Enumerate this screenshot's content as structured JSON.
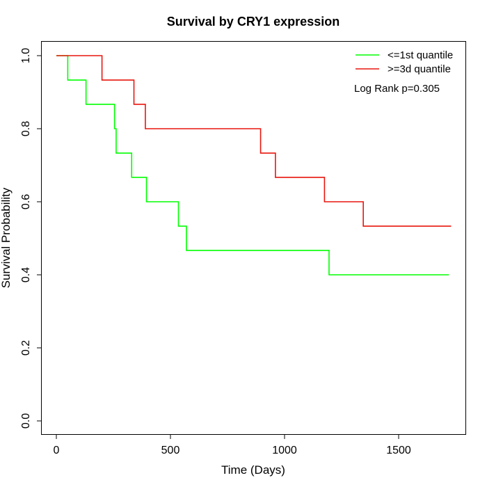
{
  "chart_data": {
    "type": "line",
    "title": "Survival by CRY1 expression",
    "xlabel": "Time (Days)",
    "ylabel": "Survival Probability",
    "xlim": [
      0,
      1750
    ],
    "ylim": [
      0,
      1.0
    ],
    "xticks": [
      0,
      500,
      1000,
      1500
    ],
    "yticks": [
      0.0,
      0.2,
      0.4,
      0.6,
      0.8,
      1.0
    ],
    "xtick_labels": [
      "0",
      "500",
      "1000",
      "1500"
    ],
    "ytick_labels": [
      "0.0",
      "0.2",
      "0.4",
      "0.6",
      "0.8",
      "1.0"
    ],
    "grid": false,
    "legend_position": "top-right",
    "annotation": "Log Rank p=0.305",
    "series": [
      {
        "name": "<=1st quantile",
        "color": "#00ff00",
        "step": true,
        "x": [
          0,
          50,
          130,
          255,
          262,
          330,
          395,
          535,
          570,
          1195,
          1720
        ],
        "y": [
          1.0,
          0.9333,
          0.8667,
          0.8,
          0.7333,
          0.6667,
          0.6,
          0.5333,
          0.4667,
          0.4,
          0.4
        ]
      },
      {
        "name": ">=3d quantile",
        "color": "#e8150d",
        "step": true,
        "x": [
          0,
          200,
          340,
          390,
          895,
          960,
          1175,
          1345,
          1730
        ],
        "y": [
          1.0,
          0.9333,
          0.8667,
          0.8,
          0.7333,
          0.6667,
          0.6,
          0.5333,
          0.5333
        ]
      }
    ]
  }
}
